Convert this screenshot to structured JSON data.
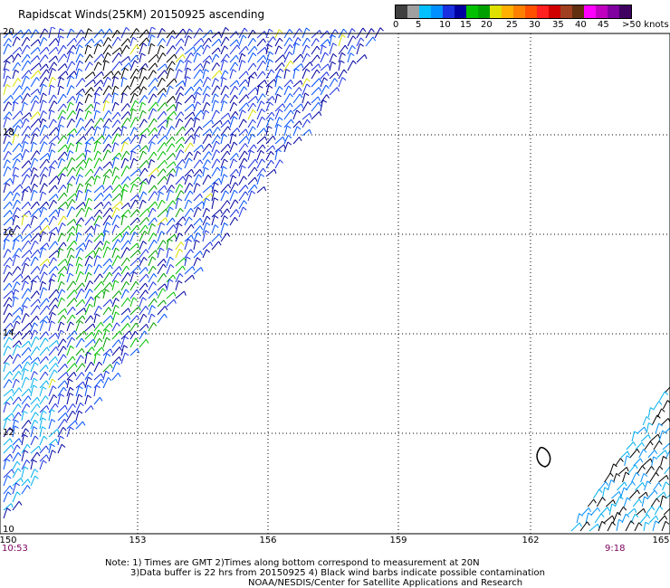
{
  "title": "Rapidscat Winds(25KM) 20150925 ascending",
  "color_scale": {
    "labels": [
      "0",
      "5",
      "10",
      "15",
      "20",
      "25",
      "30",
      "35",
      "40",
      "45",
      ">50 knots"
    ],
    "colors": [
      "#404040",
      "#a0a0a0",
      "#00c0ff",
      "#0090ff",
      "#1a30e0",
      "#0000a0",
      "#00c000",
      "#00a000",
      "#e0e000",
      "#ffb000",
      "#ff8000",
      "#ff5000",
      "#ff2020",
      "#d00000",
      "#a04020",
      "#603010",
      "#ff00ff",
      "#c000c0",
      "#8000a0",
      "#400060"
    ]
  },
  "map": {
    "lat_labels": [
      "20",
      "18",
      "16",
      "14",
      "12",
      "10"
    ],
    "lon_labels": [
      "150",
      "153",
      "156",
      "159",
      "162",
      "165"
    ],
    "time_left": "10:53",
    "time_right": "9:18"
  },
  "note_line1": "Note: 1) Times are GMT 2)Times along bottom correspond to measurement at 20N",
  "note_line2": "3)Data buffer is 22 hrs from 20150925 4) Black wind barbs indicate possible contamination",
  "credit": "NOAA/NESDIS/Center for Satellite Applications and Research"
}
